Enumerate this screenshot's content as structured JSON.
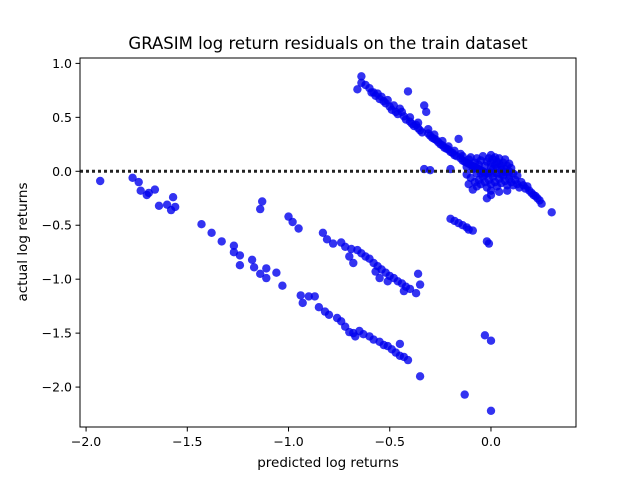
{
  "chart_data": {
    "type": "scatter",
    "title": "GRASIM log return residuals on the train dataset",
    "xlabel": "predicted log returns",
    "ylabel": "actual log returns",
    "xlim": [
      -2.03,
      0.42
    ],
    "ylim": [
      -2.37,
      1.05
    ],
    "xticks": [
      -2.0,
      -1.5,
      -1.0,
      -0.5,
      0.0
    ],
    "xtick_labels": [
      "−2.0",
      "−1.5",
      "−1.0",
      "−0.5",
      "0.0"
    ],
    "yticks": [
      1.0,
      0.5,
      0.0,
      -0.5,
      -1.0,
      -1.5,
      -2.0
    ],
    "ytick_labels": [
      "1.0",
      "0.5",
      "0.0",
      "−0.5",
      "−1.0",
      "−1.5",
      "−2.0"
    ],
    "grid": false,
    "reference_line": {
      "y": 0.0,
      "style": "dotted",
      "color": "#222222"
    },
    "marker_color": "#0000ee",
    "series": [
      {
        "points": [
          [
            -1.93,
            -0.09
          ],
          [
            -1.77,
            -0.06
          ],
          [
            -1.74,
            -0.1
          ],
          [
            -1.73,
            -0.18
          ],
          [
            -1.69,
            -0.2
          ],
          [
            -1.7,
            -0.22
          ],
          [
            -1.66,
            -0.17
          ],
          [
            -1.64,
            -0.32
          ],
          [
            -1.6,
            -0.31
          ],
          [
            -1.58,
            -0.36
          ],
          [
            -1.57,
            -0.24
          ],
          [
            -1.56,
            -0.33
          ],
          [
            -1.43,
            -0.49
          ],
          [
            -1.38,
            -0.57
          ],
          [
            -1.33,
            -0.65
          ],
          [
            -1.27,
            -0.69
          ],
          [
            -1.27,
            -0.75
          ],
          [
            -1.24,
            -0.78
          ],
          [
            -1.24,
            -0.87
          ],
          [
            -1.18,
            -0.82
          ],
          [
            -1.17,
            -0.89
          ],
          [
            -1.14,
            -0.95
          ],
          [
            -1.11,
            -0.9
          ],
          [
            -1.11,
            -0.99
          ],
          [
            -1.06,
            -0.94
          ],
          [
            -1.03,
            -1.06
          ],
          [
            -0.94,
            -1.15
          ],
          [
            -0.93,
            -1.22
          ],
          [
            -0.9,
            -1.16
          ],
          [
            -0.87,
            -1.16
          ],
          [
            -0.85,
            -1.26
          ],
          [
            -0.82,
            -1.3
          ],
          [
            -0.8,
            -1.33
          ],
          [
            -0.76,
            -1.36
          ],
          [
            -0.74,
            -1.39
          ],
          [
            -0.72,
            -1.44
          ],
          [
            -0.7,
            -1.49
          ],
          [
            -0.68,
            -1.5
          ],
          [
            -0.67,
            -1.53
          ],
          [
            -0.65,
            -1.48
          ],
          [
            -0.63,
            -1.51
          ],
          [
            -0.6,
            -1.53
          ],
          [
            -0.58,
            -1.56
          ],
          [
            -0.55,
            -1.58
          ],
          [
            -0.53,
            -1.61
          ],
          [
            -0.51,
            -1.62
          ],
          [
            -0.49,
            -1.65
          ],
          [
            -0.47,
            -1.68
          ],
          [
            -0.45,
            -1.71
          ],
          [
            -0.45,
            -1.6
          ],
          [
            -0.43,
            -1.72
          ],
          [
            -0.41,
            -1.75
          ],
          [
            -0.35,
            -1.9
          ],
          [
            -1.13,
            -0.28
          ],
          [
            -1.14,
            -0.35
          ],
          [
            -1.0,
            -0.42
          ],
          [
            -0.98,
            -0.47
          ],
          [
            -0.95,
            -0.53
          ],
          [
            -0.83,
            -0.57
          ],
          [
            -0.81,
            -0.63
          ],
          [
            -0.78,
            -0.67
          ],
          [
            -0.74,
            -0.66
          ],
          [
            -0.72,
            -0.7
          ],
          [
            -0.69,
            -0.72
          ],
          [
            -0.66,
            -0.73
          ],
          [
            -0.64,
            -0.76
          ],
          [
            -0.62,
            -0.79
          ],
          [
            -0.6,
            -0.81
          ],
          [
            -0.58,
            -0.85
          ],
          [
            -0.56,
            -0.88
          ],
          [
            -0.54,
            -0.91
          ],
          [
            -0.52,
            -0.94
          ],
          [
            -0.5,
            -0.97
          ],
          [
            -0.48,
            -0.99
          ],
          [
            -0.46,
            -1.02
          ],
          [
            -0.44,
            -1.04
          ],
          [
            -0.42,
            -1.07
          ],
          [
            -0.4,
            -1.09
          ],
          [
            -0.37,
            -1.13
          ],
          [
            -0.35,
            -1.05
          ],
          [
            -0.36,
            -0.95
          ],
          [
            -0.7,
            -0.79
          ],
          [
            -0.68,
            -0.85
          ],
          [
            -0.57,
            -0.93
          ],
          [
            -0.55,
            -0.99
          ],
          [
            -0.51,
            -1.02
          ],
          [
            -0.43,
            -1.11
          ],
          [
            -0.2,
            -0.44
          ],
          [
            -0.18,
            -0.46
          ],
          [
            -0.16,
            -0.48
          ],
          [
            -0.14,
            -0.5
          ],
          [
            -0.12,
            -0.52
          ],
          [
            -0.11,
            -0.54
          ],
          [
            -0.09,
            -0.55
          ],
          [
            -0.02,
            -0.65
          ],
          [
            -0.01,
            -0.67
          ],
          [
            -0.13,
            -2.07
          ],
          [
            -0.03,
            -1.52
          ],
          [
            0.0,
            -1.57
          ],
          [
            0.0,
            -2.22
          ],
          [
            -0.64,
            0.88
          ],
          [
            -0.66,
            0.76
          ],
          [
            -0.64,
            0.82
          ],
          [
            -0.62,
            0.8
          ],
          [
            -0.6,
            0.77
          ],
          [
            -0.59,
            0.73
          ],
          [
            -0.57,
            0.7
          ],
          [
            -0.56,
            0.72
          ],
          [
            -0.55,
            0.67
          ],
          [
            -0.53,
            0.65
          ],
          [
            -0.52,
            0.63
          ],
          [
            -0.5,
            0.6
          ],
          [
            -0.49,
            0.57
          ],
          [
            -0.47,
            0.55
          ],
          [
            -0.46,
            0.53
          ],
          [
            -0.45,
            0.58
          ],
          [
            -0.43,
            0.51
          ],
          [
            -0.42,
            0.48
          ],
          [
            -0.41,
            0.74
          ],
          [
            -0.4,
            0.46
          ],
          [
            -0.39,
            0.44
          ],
          [
            -0.38,
            0.42
          ],
          [
            -0.37,
            0.43
          ],
          [
            -0.36,
            0.4
          ],
          [
            -0.35,
            0.38
          ],
          [
            -0.34,
            0.36
          ],
          [
            -0.33,
            0.61
          ],
          [
            -0.32,
            0.55
          ],
          [
            -0.31,
            0.35
          ],
          [
            -0.3,
            0.33
          ],
          [
            -0.29,
            0.31
          ],
          [
            -0.28,
            0.3
          ],
          [
            -0.27,
            0.29
          ],
          [
            -0.26,
            0.27
          ],
          [
            -0.25,
            0.25
          ],
          [
            -0.24,
            0.24
          ],
          [
            -0.23,
            0.22
          ],
          [
            -0.22,
            0.21
          ],
          [
            -0.21,
            0.2
          ],
          [
            -0.2,
            0.18
          ],
          [
            -0.19,
            0.17
          ],
          [
            -0.18,
            0.15
          ],
          [
            -0.17,
            0.14
          ],
          [
            -0.16,
            0.3
          ],
          [
            -0.15,
            0.12
          ],
          [
            -0.14,
            0.1
          ],
          [
            -0.13,
            0.09
          ],
          [
            -0.12,
            0.08
          ],
          [
            -0.11,
            0.07
          ],
          [
            -0.1,
            0.06
          ],
          [
            -0.09,
            0.05
          ],
          [
            -0.08,
            0.04
          ],
          [
            -0.07,
            0.03
          ],
          [
            -0.06,
            0.02
          ],
          [
            -0.05,
            0.01
          ],
          [
            -0.04,
            0.0
          ],
          [
            -0.03,
            -0.01
          ],
          [
            -0.02,
            -0.02
          ],
          [
            -0.58,
            0.73
          ],
          [
            -0.54,
            0.69
          ],
          [
            -0.51,
            0.66
          ],
          [
            -0.48,
            0.61
          ],
          [
            -0.44,
            0.55
          ],
          [
            -0.4,
            0.5
          ],
          [
            -0.36,
            0.45
          ],
          [
            -0.31,
            0.39
          ],
          [
            -0.28,
            0.34
          ],
          [
            -0.24,
            0.28
          ],
          [
            -0.21,
            0.23
          ],
          [
            -0.18,
            0.19
          ],
          [
            -0.14,
            0.14
          ],
          [
            -0.11,
            0.11
          ],
          [
            -0.33,
            0.02
          ],
          [
            -0.3,
            0.01
          ],
          [
            -0.2,
            0.02
          ],
          [
            -0.12,
            0.04
          ],
          [
            -0.08,
            0.03
          ],
          [
            -0.15,
            0.16
          ],
          [
            -0.1,
            0.13
          ],
          [
            -0.12,
            -0.03
          ],
          [
            -0.1,
            -0.06
          ],
          [
            -0.08,
            -0.1
          ],
          [
            -0.07,
            -0.14
          ],
          [
            -0.06,
            -0.08
          ],
          [
            -0.05,
            -0.12
          ],
          [
            -0.04,
            -0.05
          ],
          [
            -0.03,
            -0.1
          ],
          [
            -0.02,
            -0.15
          ],
          [
            -0.01,
            -0.08
          ],
          [
            0.0,
            -0.12
          ],
          [
            0.0,
            -0.22
          ],
          [
            0.01,
            -0.05
          ],
          [
            0.02,
            -0.1
          ],
          [
            0.03,
            -0.14
          ],
          [
            0.04,
            -0.07
          ],
          [
            0.05,
            -0.11
          ],
          [
            0.06,
            -0.04
          ],
          [
            0.07,
            -0.09
          ],
          [
            0.08,
            -0.13
          ],
          [
            0.09,
            -0.07
          ],
          [
            0.1,
            -0.1
          ],
          [
            0.11,
            -0.13
          ],
          [
            0.12,
            -0.08
          ],
          [
            0.13,
            -0.12
          ],
          [
            0.14,
            -0.15
          ],
          [
            0.15,
            -0.1
          ],
          [
            0.16,
            -0.13
          ],
          [
            0.17,
            -0.16
          ],
          [
            0.18,
            -0.14
          ],
          [
            0.19,
            -0.18
          ],
          [
            0.2,
            -0.2
          ],
          [
            0.21,
            -0.22
          ],
          [
            0.22,
            -0.23
          ],
          [
            0.23,
            -0.25
          ],
          [
            0.24,
            -0.27
          ],
          [
            0.25,
            -0.3
          ],
          [
            0.3,
            -0.38
          ],
          [
            -0.09,
            0.02
          ],
          [
            -0.08,
            0.08
          ],
          [
            -0.07,
            0.12
          ],
          [
            -0.06,
            0.06
          ],
          [
            -0.05,
            0.1
          ],
          [
            -0.04,
            0.14
          ],
          [
            -0.03,
            0.05
          ],
          [
            -0.02,
            0.09
          ],
          [
            -0.01,
            0.12
          ],
          [
            0.0,
            0.04
          ],
          [
            0.0,
            0.08
          ],
          [
            0.0,
            0.15
          ],
          [
            0.01,
            0.02
          ],
          [
            0.01,
            0.11
          ],
          [
            0.02,
            0.06
          ],
          [
            0.02,
            0.13
          ],
          [
            0.03,
            0.03
          ],
          [
            0.03,
            0.09
          ],
          [
            0.04,
            0.07
          ],
          [
            0.04,
            0.12
          ],
          [
            0.05,
            0.05
          ],
          [
            0.05,
            0.01
          ],
          [
            0.06,
            0.08
          ],
          [
            0.07,
            0.02
          ],
          [
            0.07,
            0.11
          ],
          [
            0.08,
            0.05
          ],
          [
            0.09,
            0.0
          ],
          [
            0.09,
            0.07
          ],
          [
            0.1,
            0.03
          ],
          [
            -0.07,
            -0.02
          ],
          [
            -0.05,
            -0.02
          ],
          [
            -0.03,
            -0.03
          ],
          [
            -0.01,
            -0.01
          ],
          [
            0.01,
            -0.02
          ],
          [
            0.03,
            -0.02
          ],
          [
            0.05,
            -0.03
          ],
          [
            0.07,
            -0.01
          ],
          [
            0.09,
            -0.03
          ],
          [
            0.11,
            -0.02
          ],
          [
            0.13,
            -0.04
          ],
          [
            -0.02,
            -0.25
          ],
          [
            0.0,
            -0.18
          ],
          [
            -0.11,
            -0.12
          ],
          [
            -0.09,
            -0.17
          ],
          [
            0.04,
            -0.19
          ],
          [
            0.08,
            -0.18
          ]
        ]
      }
    ]
  }
}
